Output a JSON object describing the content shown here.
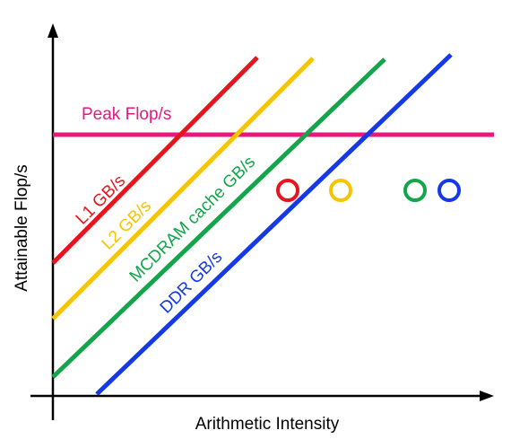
{
  "axes": {
    "x_label": "Arithmetic Intensity",
    "y_label": "Attainable Flop/s"
  },
  "colors": {
    "peak": "#e8197e",
    "l1": "#e8141b",
    "l2": "#f6c400",
    "mcdram": "#12a54a",
    "ddr": "#1539e6",
    "axis": "#000000"
  },
  "lines": {
    "peak": {
      "label": "Peak Flop/s"
    },
    "l1": {
      "label": "L1 GB/s"
    },
    "l2": {
      "label": "L2 GB/s"
    },
    "mcdram": {
      "label": "MCDRAM cache GB/s"
    },
    "ddr": {
      "label": "DDR GB/s"
    }
  },
  "markers": [
    {
      "name": "l1-marker",
      "color_key": "l1"
    },
    {
      "name": "l2-marker",
      "color_key": "l2"
    },
    {
      "name": "mcdram-marker",
      "color_key": "mcdram"
    },
    {
      "name": "ddr-marker",
      "color_key": "ddr"
    }
  ]
}
